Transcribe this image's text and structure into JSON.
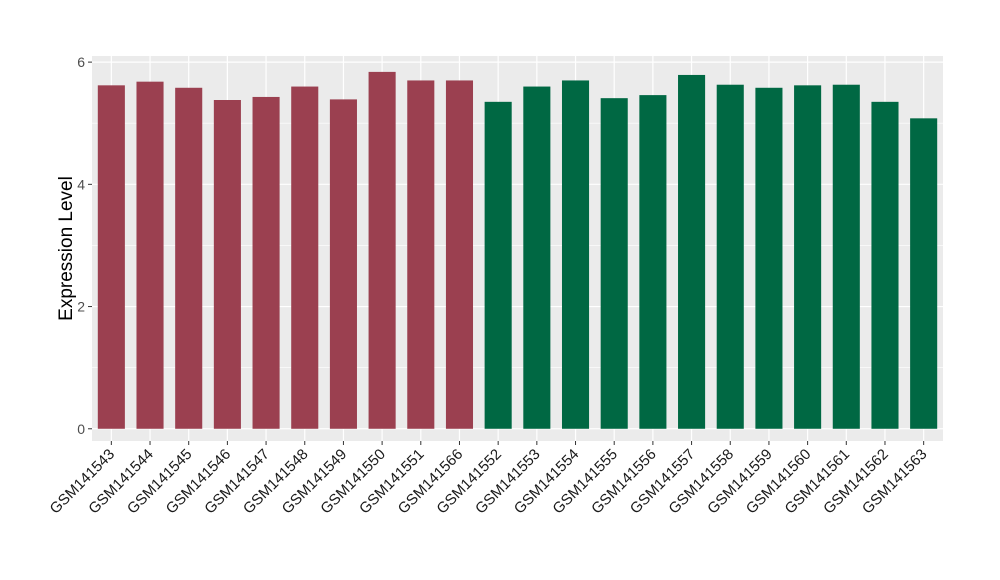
{
  "chart_data": {
    "type": "bar",
    "title": "",
    "xlabel": "",
    "ylabel": "Expression Level",
    "ylim": [
      -0.2,
      6.1
    ],
    "yticks": [
      0,
      2,
      4,
      6
    ],
    "grid": true,
    "legend": "none",
    "background": "#ebebeb",
    "gridline_color": "#ffffff",
    "categories": [
      "GSM141543",
      "GSM141544",
      "GSM141545",
      "GSM141546",
      "GSM141547",
      "GSM141548",
      "GSM141549",
      "GSM141550",
      "GSM141551",
      "GSM141566",
      "GSM141552",
      "GSM141553",
      "GSM141554",
      "GSM141555",
      "GSM141556",
      "GSM141557",
      "GSM141558",
      "GSM141559",
      "GSM141560",
      "GSM141561",
      "GSM141562",
      "GSM141563"
    ],
    "values": [
      5.62,
      5.68,
      5.58,
      5.38,
      5.43,
      5.6,
      5.39,
      5.84,
      5.7,
      5.7,
      5.35,
      5.6,
      5.7,
      5.41,
      5.46,
      5.79,
      5.63,
      5.58,
      5.62,
      5.63,
      5.35,
      5.08
    ],
    "bar_colors": [
      "#9b4050",
      "#9b4050",
      "#9b4050",
      "#9b4050",
      "#9b4050",
      "#9b4050",
      "#9b4050",
      "#9b4050",
      "#9b4050",
      "#9b4050",
      "#006843",
      "#006843",
      "#006843",
      "#006843",
      "#006843",
      "#006843",
      "#006843",
      "#006843",
      "#006843",
      "#006843",
      "#006843",
      "#006843"
    ]
  }
}
